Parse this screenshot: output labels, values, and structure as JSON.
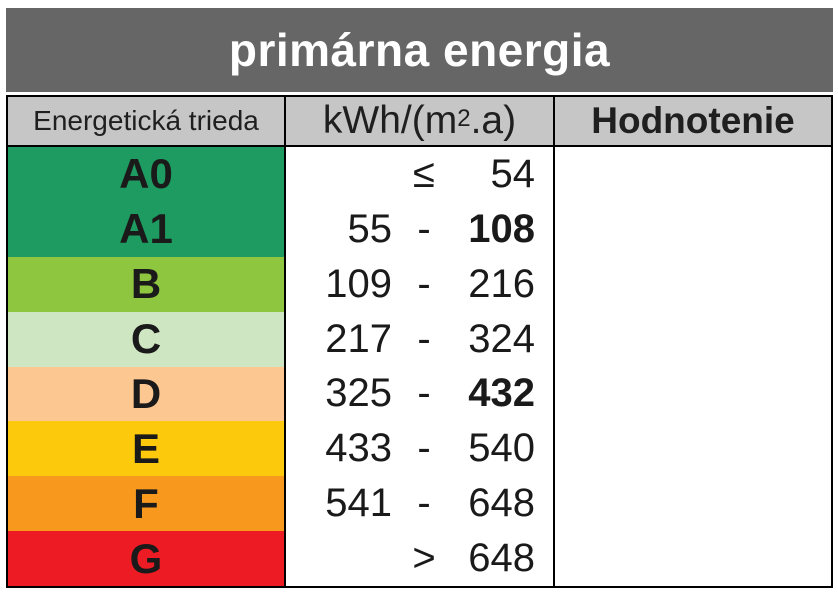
{
  "title": "primárna energia",
  "header": {
    "class_col": "Energetická trieda",
    "unit_col": {
      "prefix": "kWh/(m",
      "sup": "2",
      "suffix": ".a)"
    },
    "rating_col": "Hodnotenie"
  },
  "colors": {
    "title_bg": "#666666",
    "title_text": "#ffffff",
    "header_bg": "#c6c6c6",
    "border": "#000000",
    "class_A0": "#1e9b60",
    "class_A1": "#1e9b60",
    "class_B": "#8ec63f",
    "class_C": "#cee7c2",
    "class_D": "#fdc791",
    "class_E": "#fdc90d",
    "class_F": "#f8991e",
    "class_G": "#ed1c24"
  },
  "rows": [
    {
      "label": "A0",
      "color": "#1e9b60",
      "from": "",
      "sep": "≤",
      "to": "54",
      "to_bold": false
    },
    {
      "label": "A1",
      "color": "#1e9b60",
      "from": "55",
      "sep": "-",
      "to": "108",
      "to_bold": true
    },
    {
      "label": "B",
      "color": "#8ec63f",
      "from": "109",
      "sep": "-",
      "to": "216",
      "to_bold": false
    },
    {
      "label": "C",
      "color": "#cee7c2",
      "from": "217",
      "sep": "-",
      "to": "324",
      "to_bold": false
    },
    {
      "label": "D",
      "color": "#fdc791",
      "from": "325",
      "sep": "-",
      "to": "432",
      "to_bold": true
    },
    {
      "label": "E",
      "color": "#fdc90d",
      "from": "433",
      "sep": "-",
      "to": "540",
      "to_bold": false
    },
    {
      "label": "F",
      "color": "#f8991e",
      "from": "541",
      "sep": "-",
      "to": "648",
      "to_bold": false
    },
    {
      "label": "G",
      "color": "#ed1c24",
      "from": "",
      "sep": ">",
      "to": "648",
      "to_bold": false
    }
  ],
  "rating_value": ""
}
